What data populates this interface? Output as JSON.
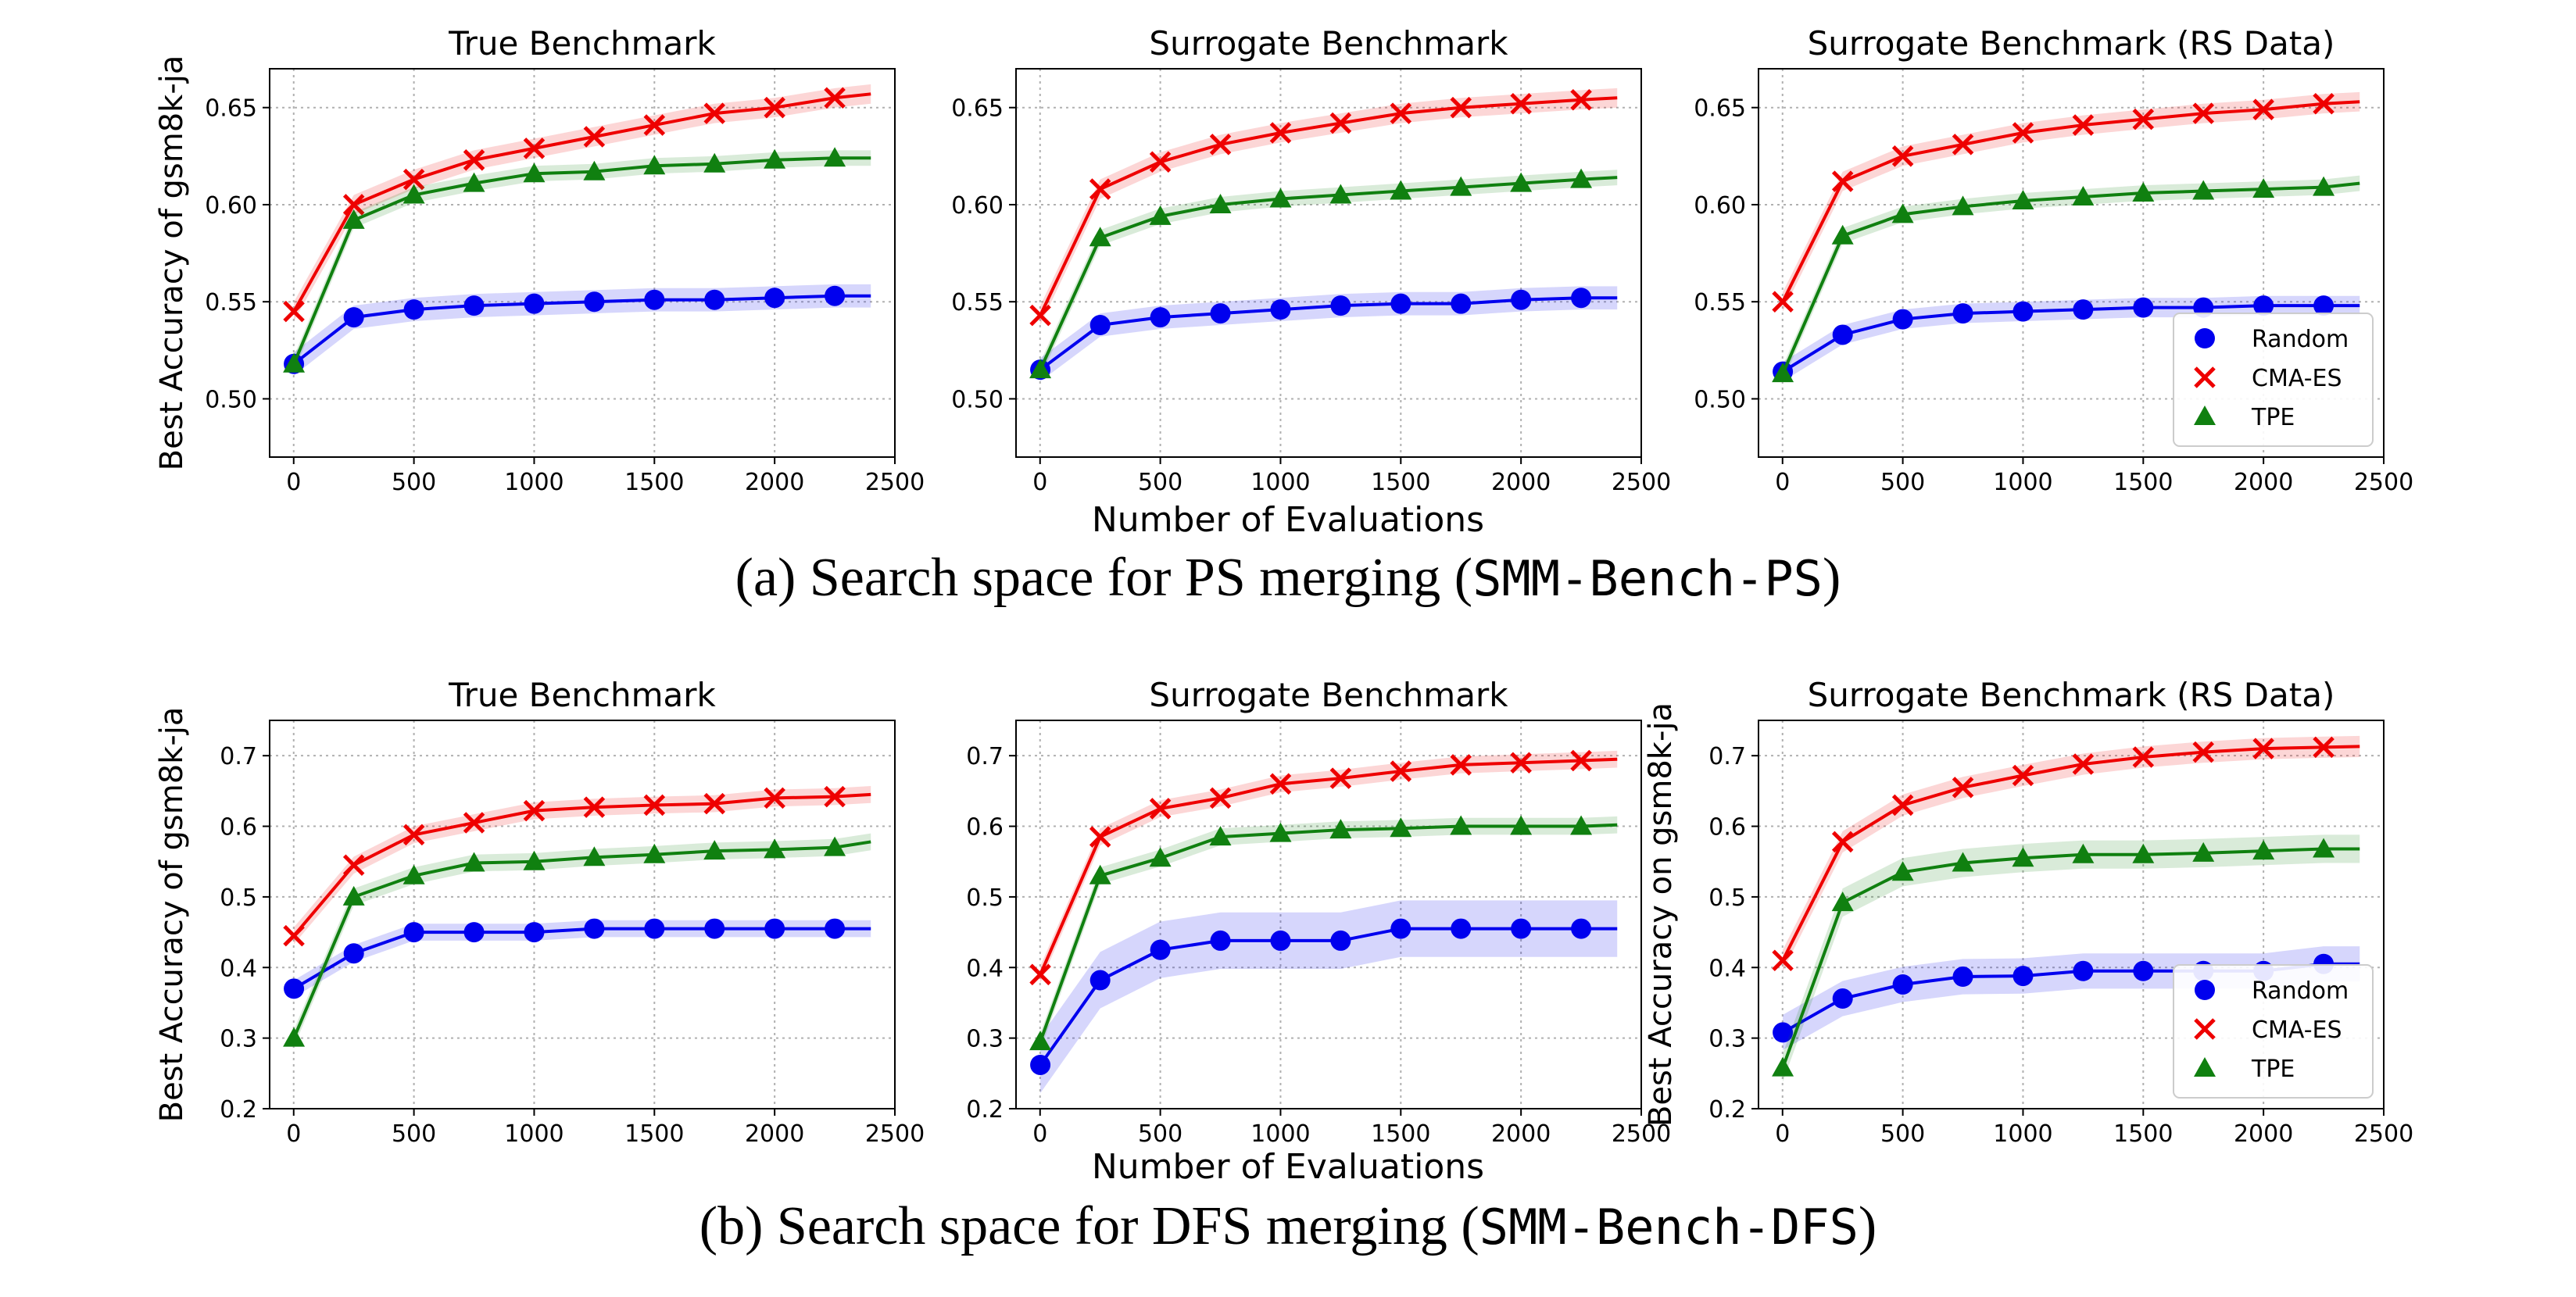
{
  "legend": {
    "random": "Random",
    "cmaes": "CMA-ES",
    "tpe": "TPE"
  },
  "colors": {
    "random": "#0000ee",
    "cmaes": "#ee0000",
    "tpe": "#108010"
  },
  "rows": [
    {
      "caption_prefix": "(a) Search space for PS merging (",
      "caption_code": "SMM-Bench-PS",
      "caption_suffix": ")",
      "xlabel": "Number of Evaluations",
      "panels": [
        {
          "title": "True Benchmark",
          "ylabel": "Best Accuracy of gsm8k-ja",
          "legend": false
        },
        {
          "title": "Surrogate Benchmark",
          "ylabel": "",
          "legend": false
        },
        {
          "title": "Surrogate Benchmark (RS Data)",
          "ylabel": "",
          "legend": true
        }
      ]
    },
    {
      "caption_prefix": "(b) Search space for DFS merging (",
      "caption_code": "SMM-Bench-DFS",
      "caption_suffix": ")",
      "xlabel": "Number of Evaluations",
      "panels": [
        {
          "title": "True Benchmark",
          "ylabel": "Best Accuracy of gsm8k-ja",
          "legend": false
        },
        {
          "title": "Surrogate Benchmark",
          "ylabel": "",
          "legend": false
        },
        {
          "title": "Surrogate Benchmark (RS Data)",
          "ylabel": "Best Accuracy on gsm8k-ja",
          "legend": true
        }
      ]
    }
  ],
  "chart_data": [
    {
      "type": "line",
      "title": "True Benchmark",
      "ylabel": "Best Accuracy of gsm8k-ja",
      "xlabel": "Number of Evaluations",
      "xlim": [
        -100,
        2500
      ],
      "ylim": [
        0.47,
        0.67
      ],
      "xticks": [
        0,
        500,
        1000,
        1500,
        2000,
        2500
      ],
      "yticks": [
        0.5,
        0.55,
        0.6,
        0.65
      ],
      "ytick_labels": [
        "0.50",
        "0.55",
        "0.60",
        "0.65"
      ],
      "grid": true,
      "x": [
        1,
        250,
        500,
        750,
        1000,
        1250,
        1500,
        1750,
        2000,
        2250,
        2400
      ],
      "series": [
        {
          "name": "Random",
          "values": [
            0.518,
            0.542,
            0.546,
            0.548,
            0.549,
            0.55,
            0.551,
            0.551,
            0.552,
            0.553,
            0.553
          ]
        },
        {
          "name": "CMA-ES",
          "values": [
            0.545,
            0.6,
            0.613,
            0.623,
            0.629,
            0.635,
            0.641,
            0.647,
            0.65,
            0.655,
            0.657
          ]
        },
        {
          "name": "TPE",
          "values": [
            0.518,
            0.592,
            0.605,
            0.611,
            0.616,
            0.617,
            0.62,
            0.621,
            0.623,
            0.624,
            0.624
          ]
        }
      ]
    },
    {
      "type": "line",
      "title": "Surrogate Benchmark",
      "xlabel": "Number of Evaluations",
      "xlim": [
        -100,
        2500
      ],
      "ylim": [
        0.47,
        0.67
      ],
      "xticks": [
        0,
        500,
        1000,
        1500,
        2000,
        2500
      ],
      "yticks": [
        0.5,
        0.55,
        0.6,
        0.65
      ],
      "ytick_labels": [
        "0.50",
        "0.55",
        "0.60",
        "0.65"
      ],
      "grid": true,
      "x": [
        1,
        250,
        500,
        750,
        1000,
        1250,
        1500,
        1750,
        2000,
        2250,
        2400
      ],
      "series": [
        {
          "name": "Random",
          "values": [
            0.515,
            0.538,
            0.542,
            0.544,
            0.546,
            0.548,
            0.549,
            0.549,
            0.551,
            0.552,
            0.552
          ]
        },
        {
          "name": "CMA-ES",
          "values": [
            0.543,
            0.608,
            0.622,
            0.631,
            0.637,
            0.642,
            0.647,
            0.65,
            0.652,
            0.654,
            0.655
          ]
        },
        {
          "name": "TPE",
          "values": [
            0.515,
            0.583,
            0.594,
            0.6,
            0.603,
            0.605,
            0.607,
            0.609,
            0.611,
            0.613,
            0.614
          ]
        }
      ]
    },
    {
      "type": "line",
      "title": "Surrogate Benchmark (RS Data)",
      "xlabel": "Number of Evaluations",
      "xlim": [
        -100,
        2500
      ],
      "ylim": [
        0.47,
        0.67
      ],
      "xticks": [
        0,
        500,
        1000,
        1500,
        2000,
        2500
      ],
      "yticks": [
        0.5,
        0.55,
        0.6,
        0.65
      ],
      "ytick_labels": [
        "0.50",
        "0.55",
        "0.60",
        "0.65"
      ],
      "grid": true,
      "legend": "lower right",
      "x": [
        1,
        250,
        500,
        750,
        1000,
        1250,
        1500,
        1750,
        2000,
        2250,
        2400
      ],
      "series": [
        {
          "name": "Random",
          "values": [
            0.514,
            0.533,
            0.541,
            0.544,
            0.545,
            0.546,
            0.547,
            0.547,
            0.548,
            0.548,
            0.548
          ]
        },
        {
          "name": "CMA-ES",
          "values": [
            0.55,
            0.612,
            0.625,
            0.631,
            0.637,
            0.641,
            0.644,
            0.647,
            0.649,
            0.652,
            0.653
          ]
        },
        {
          "name": "TPE",
          "values": [
            0.513,
            0.584,
            0.595,
            0.599,
            0.602,
            0.604,
            0.606,
            0.607,
            0.608,
            0.609,
            0.611
          ]
        }
      ]
    },
    {
      "type": "line",
      "title": "True Benchmark",
      "ylabel": "Best Accuracy of gsm8k-ja",
      "xlabel": "Number of Evaluations",
      "xlim": [
        -100,
        2500
      ],
      "ylim": [
        0.2,
        0.75
      ],
      "xticks": [
        0,
        500,
        1000,
        1500,
        2000,
        2500
      ],
      "yticks": [
        0.2,
        0.3,
        0.4,
        0.5,
        0.6,
        0.7
      ],
      "ytick_labels": [
        "0.2",
        "0.3",
        "0.4",
        "0.5",
        "0.6",
        "0.7"
      ],
      "grid": true,
      "x": [
        1,
        250,
        500,
        750,
        1000,
        1250,
        1500,
        1750,
        2000,
        2250,
        2400
      ],
      "series": [
        {
          "name": "Random",
          "values": [
            0.37,
            0.42,
            0.45,
            0.45,
            0.45,
            0.455,
            0.455,
            0.455,
            0.455,
            0.455,
            0.455
          ]
        },
        {
          "name": "CMA-ES",
          "values": [
            0.445,
            0.545,
            0.588,
            0.605,
            0.622,
            0.627,
            0.63,
            0.632,
            0.64,
            0.642,
            0.645
          ]
        },
        {
          "name": "TPE",
          "values": [
            0.3,
            0.5,
            0.53,
            0.548,
            0.55,
            0.556,
            0.56,
            0.565,
            0.567,
            0.57,
            0.578
          ]
        }
      ]
    },
    {
      "type": "line",
      "title": "Surrogate Benchmark",
      "xlabel": "Number of Evaluations",
      "xlim": [
        -100,
        2500
      ],
      "ylim": [
        0.2,
        0.75
      ],
      "xticks": [
        0,
        500,
        1000,
        1500,
        2000,
        2500
      ],
      "yticks": [
        0.2,
        0.3,
        0.4,
        0.5,
        0.6,
        0.7
      ],
      "ytick_labels": [
        "0.2",
        "0.3",
        "0.4",
        "0.5",
        "0.6",
        "0.7"
      ],
      "grid": true,
      "x": [
        1,
        250,
        500,
        750,
        1000,
        1250,
        1500,
        1750,
        2000,
        2250,
        2400
      ],
      "series": [
        {
          "name": "Random",
          "values": [
            0.262,
            0.382,
            0.425,
            0.438,
            0.438,
            0.438,
            0.455,
            0.455,
            0.455,
            0.455,
            0.455
          ]
        },
        {
          "name": "CMA-ES",
          "values": [
            0.39,
            0.585,
            0.625,
            0.64,
            0.66,
            0.668,
            0.678,
            0.687,
            0.69,
            0.693,
            0.695
          ]
        },
        {
          "name": "TPE",
          "values": [
            0.295,
            0.53,
            0.555,
            0.585,
            0.59,
            0.595,
            0.597,
            0.6,
            0.6,
            0.6,
            0.602
          ]
        }
      ]
    },
    {
      "type": "line",
      "title": "Surrogate Benchmark (RS Data)",
      "ylabel": "Best Accuracy on gsm8k-ja",
      "xlabel": "Number of Evaluations",
      "xlim": [
        -100,
        2500
      ],
      "ylim": [
        0.2,
        0.75
      ],
      "xticks": [
        0,
        500,
        1000,
        1500,
        2000,
        2500
      ],
      "yticks": [
        0.2,
        0.3,
        0.4,
        0.5,
        0.6,
        0.7
      ],
      "ytick_labels": [
        "0.2",
        "0.3",
        "0.4",
        "0.5",
        "0.6",
        "0.7"
      ],
      "grid": true,
      "legend": "lower right",
      "x": [
        1,
        250,
        500,
        750,
        1000,
        1250,
        1500,
        1750,
        2000,
        2250,
        2400
      ],
      "series": [
        {
          "name": "Random",
          "values": [
            0.308,
            0.356,
            0.376,
            0.387,
            0.388,
            0.395,
            0.395,
            0.395,
            0.395,
            0.405,
            0.405
          ]
        },
        {
          "name": "CMA-ES",
          "values": [
            0.41,
            0.578,
            0.63,
            0.655,
            0.672,
            0.688,
            0.698,
            0.705,
            0.71,
            0.712,
            0.713
          ]
        },
        {
          "name": "TPE",
          "values": [
            0.258,
            0.492,
            0.535,
            0.548,
            0.555,
            0.56,
            0.56,
            0.562,
            0.565,
            0.568,
            0.568
          ]
        }
      ]
    }
  ]
}
